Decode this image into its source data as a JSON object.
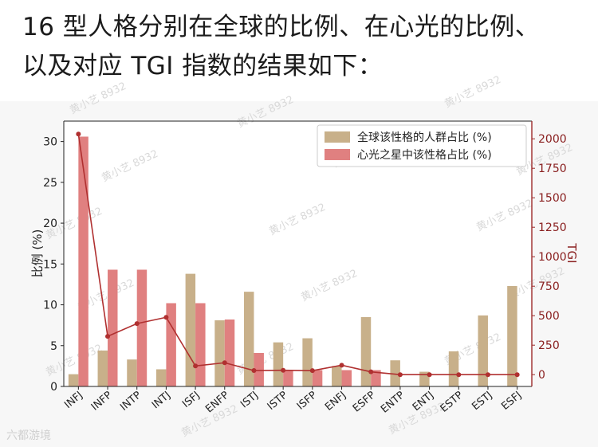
{
  "heading": {
    "line1": "16 型人格分别在全球的比例、在心光的比例、",
    "line2": "以及对应 TGI 指数的结果如下："
  },
  "watermark": "黄小艺 8932",
  "footer_logo": "六都游境",
  "chart_data": {
    "type": "bar",
    "categories": [
      "INFJ",
      "INFP",
      "INTP",
      "INTJ",
      "ISFJ",
      "ENFP",
      "ISTJ",
      "ISTP",
      "ISFP",
      "ENFJ",
      "ESFP",
      "ENTP",
      "ENTJ",
      "ESTP",
      "ESTJ",
      "ESFJ"
    ],
    "series": [
      {
        "name": "全球该性格的人群占比 (%)",
        "color": "#c8b08a",
        "values": [
          1.5,
          4.4,
          3.3,
          2.1,
          13.8,
          8.1,
          11.6,
          5.4,
          5.9,
          2.5,
          8.5,
          3.2,
          1.8,
          4.3,
          8.7,
          12.3
        ]
      },
      {
        "name": "心光之星中该性格占比 (%)",
        "color": "#e08080",
        "values": [
          30.6,
          14.3,
          14.3,
          10.2,
          10.2,
          8.2,
          4.1,
          2.0,
          2.0,
          2.0,
          2.0,
          0,
          0,
          0,
          0,
          0
        ]
      }
    ],
    "line_series": {
      "name": "TGI",
      "color": "#b03030",
      "axis": "right",
      "values": [
        2040,
        325,
        433,
        486,
        74,
        101,
        35,
        37,
        34,
        80,
        24,
        0,
        0,
        0,
        0,
        0
      ]
    },
    "ylabel": "比例 (%)",
    "ylim": [
      0,
      32.5
    ],
    "yticks": [
      0,
      5,
      10,
      15,
      20,
      25,
      30
    ],
    "y2label": "TGI",
    "y2lim": [
      -100,
      2150
    ],
    "y2ticks": [
      0,
      250,
      500,
      750,
      1000,
      1250,
      1500,
      1750,
      2000
    ],
    "legend_position": "top-right",
    "grid": false
  }
}
